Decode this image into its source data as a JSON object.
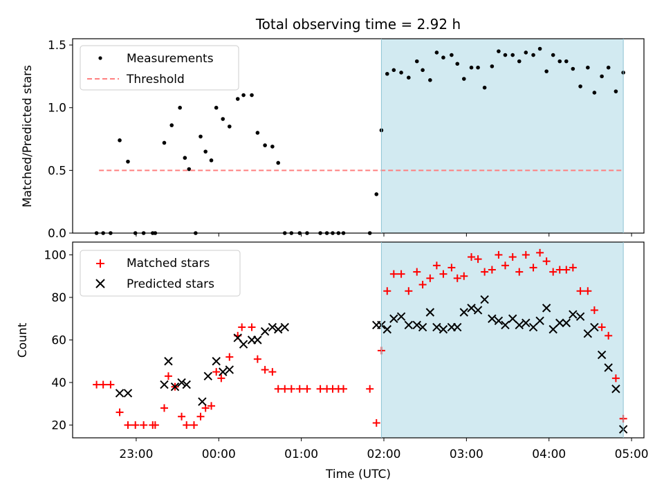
{
  "figure": {
    "title": "Total observing time = 2.92 h",
    "xlabel": "Time (UTC)",
    "x_tick_labels": [
      "23:00",
      "00:00",
      "01:00",
      "02:00",
      "03:00",
      "04:00",
      "05:00"
    ],
    "colors": {
      "measurements": "#000000",
      "threshold": "#ff7f7f",
      "matched": "#ff0000",
      "predicted": "#000000",
      "shading": "#add8e6"
    }
  },
  "chart_data": [
    {
      "type": "scatter",
      "panel": "top",
      "ylabel": "Matched/Predicted stars",
      "x_unit": "hours relative to 00:00 UTC",
      "xlim": [
        -1.77,
        5.15
      ],
      "ylim": [
        0,
        1.55
      ],
      "y_ticks": [
        0.0,
        0.5,
        1.0,
        1.5
      ],
      "y_tick_labels": [
        "0.0",
        "0.5",
        "1.0",
        "1.5"
      ],
      "shaded_x_range": [
        1.97,
        4.9
      ],
      "legend": {
        "placement": "upper left",
        "entries": [
          "Measurements",
          "Threshold"
        ]
      },
      "series": [
        {
          "name": "Measurements",
          "marker": "dot",
          "x": [
            -1.48,
            -1.4,
            -1.31,
            -1.2,
            -1.1,
            -1.01,
            -0.91,
            -0.8,
            -0.77,
            -0.66,
            -0.57,
            -0.47,
            -0.41,
            -0.36,
            -0.28,
            -0.22,
            -0.16,
            -0.09,
            -0.03,
            0.05,
            0.13,
            0.23,
            0.3,
            0.4,
            0.47,
            0.56,
            0.65,
            0.72,
            0.8,
            0.88,
            0.98,
            1.07,
            1.23,
            1.31,
            1.38,
            1.45,
            1.51,
            1.83,
            1.91,
            1.97,
            2.04,
            2.12,
            2.21,
            2.3,
            2.4,
            2.47,
            2.56,
            2.64,
            2.72,
            2.82,
            2.89,
            2.97,
            3.06,
            3.14,
            3.22,
            3.31,
            3.39,
            3.47,
            3.56,
            3.64,
            3.72,
            3.81,
            3.89,
            3.97,
            4.05,
            4.13,
            4.21,
            4.29,
            4.38,
            4.47,
            4.55,
            4.64,
            4.72,
            4.81,
            4.9
          ],
          "y": [
            0,
            0,
            0,
            0.74,
            0.57,
            0,
            0,
            0,
            0,
            0.72,
            0.86,
            1.0,
            0.6,
            0.51,
            0,
            0.77,
            0.65,
            0.58,
            1.0,
            0.91,
            0.85,
            1.07,
            1.1,
            1.1,
            0.8,
            0.7,
            0.69,
            0.56,
            0,
            0,
            0,
            0,
            0,
            0,
            0,
            0,
            0,
            0,
            0.31,
            0.82,
            1.27,
            1.3,
            1.28,
            1.24,
            1.37,
            1.3,
            1.22,
            1.44,
            1.4,
            1.42,
            1.35,
            1.23,
            1.32,
            1.32,
            1.16,
            1.33,
            1.45,
            1.42,
            1.42,
            1.37,
            1.44,
            1.42,
            1.47,
            1.29,
            1.42,
            1.37,
            1.37,
            1.31,
            1.17,
            1.32,
            1.12,
            1.25,
            1.32,
            1.13,
            1.28
          ]
        },
        {
          "name": "Threshold",
          "style": "dashed",
          "x": [
            -1.45,
            4.9
          ],
          "y": [
            0.5,
            0.5
          ]
        }
      ]
    },
    {
      "type": "scatter",
      "panel": "bottom",
      "ylabel": "Count",
      "x_unit": "hours relative to 00:00 UTC",
      "xlim": [
        -1.77,
        5.15
      ],
      "ylim": [
        14,
        106
      ],
      "y_ticks": [
        20,
        40,
        60,
        80,
        100
      ],
      "y_tick_labels": [
        "20",
        "40",
        "60",
        "80",
        "100"
      ],
      "shaded_x_range": [
        1.97,
        4.9
      ],
      "legend": {
        "placement": "upper left",
        "entries": [
          "Matched stars",
          "Predicted stars"
        ]
      },
      "series": [
        {
          "name": "Matched stars",
          "marker": "plus",
          "x": [
            -1.48,
            -1.4,
            -1.31,
            -1.2,
            -1.1,
            -1.01,
            -0.91,
            -0.8,
            -0.77,
            -0.66,
            -0.61,
            -0.53,
            -0.45,
            -0.39,
            -0.3,
            -0.22,
            -0.16,
            -0.09,
            -0.03,
            0.03,
            0.13,
            0.23,
            0.28,
            0.4,
            0.47,
            0.56,
            0.65,
            0.72,
            0.8,
            0.88,
            0.98,
            1.07,
            1.23,
            1.31,
            1.38,
            1.45,
            1.51,
            1.83,
            1.91,
            1.97,
            2.04,
            2.12,
            2.21,
            2.3,
            2.4,
            2.47,
            2.56,
            2.64,
            2.72,
            2.82,
            2.89,
            2.97,
            3.06,
            3.14,
            3.22,
            3.31,
            3.39,
            3.47,
            3.56,
            3.64,
            3.72,
            3.81,
            3.89,
            3.97,
            4.05,
            4.13,
            4.21,
            4.29,
            4.38,
            4.47,
            4.55,
            4.64,
            4.72,
            4.81,
            4.9
          ],
          "y": [
            39,
            39,
            39,
            26,
            20,
            20,
            20,
            20,
            20,
            28,
            43,
            38,
            24,
            20,
            20,
            24,
            28,
            29,
            45,
            42,
            52,
            62,
            66,
            66,
            51,
            46,
            45,
            37,
            37,
            37,
            37,
            37,
            37,
            37,
            37,
            37,
            37,
            37,
            21,
            55,
            83,
            91,
            91,
            83,
            92,
            86,
            89,
            95,
            91,
            94,
            89,
            90,
            99,
            98,
            92,
            93,
            100,
            95,
            99,
            92,
            100,
            94,
            101,
            97,
            92,
            93,
            93,
            94,
            83,
            83,
            74,
            66,
            62,
            42,
            23
          ]
        },
        {
          "name": "Predicted stars",
          "marker": "x",
          "x": [
            -1.2,
            -1.1,
            -0.66,
            -0.61,
            -0.53,
            -0.45,
            -0.39,
            -0.2,
            -0.13,
            -0.03,
            0.05,
            0.13,
            0.23,
            0.3,
            0.4,
            0.47,
            0.56,
            0.65,
            0.72,
            0.8,
            1.91,
            1.97,
            2.04,
            2.12,
            2.21,
            2.3,
            2.4,
            2.47,
            2.56,
            2.64,
            2.72,
            2.82,
            2.89,
            2.97,
            3.06,
            3.14,
            3.22,
            3.31,
            3.39,
            3.47,
            3.56,
            3.64,
            3.72,
            3.81,
            3.89,
            3.97,
            4.05,
            4.13,
            4.21,
            4.29,
            4.38,
            4.47,
            4.55,
            4.64,
            4.72,
            4.81,
            4.9
          ],
          "y": [
            35,
            35,
            39,
            50,
            38,
            40,
            39,
            31,
            43,
            50,
            45,
            46,
            61,
            58,
            60,
            60,
            64,
            66,
            65,
            66,
            67,
            67,
            65,
            70,
            71,
            67,
            67,
            66,
            73,
            66,
            65,
            66,
            66,
            73,
            75,
            74,
            79,
            70,
            69,
            67,
            70,
            67,
            68,
            66,
            69,
            75,
            65,
            68,
            68,
            72,
            71,
            63,
            66,
            53,
            47,
            37,
            18
          ]
        }
      ]
    }
  ]
}
